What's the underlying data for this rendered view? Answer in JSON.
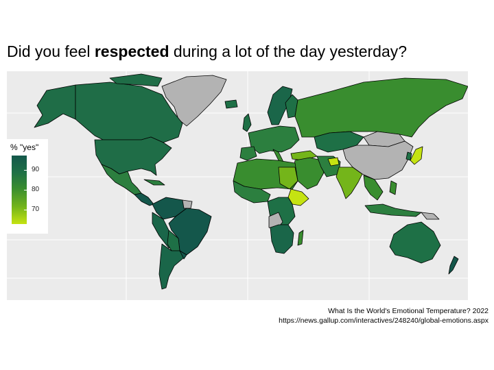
{
  "title": {
    "prefix": "Did you feel ",
    "emphasis": "respected",
    "suffix": " during a lot of the day yesterday?"
  },
  "legend": {
    "title": "% \"yes\"",
    "ticks": [
      {
        "label": "90",
        "value": 90
      },
      {
        "label": "80",
        "value": 80
      },
      {
        "label": "70",
        "value": 70
      }
    ],
    "scale_min": 63,
    "scale_max": 97,
    "colors": [
      "#14574b",
      "#1e7046",
      "#398d2f",
      "#74b51a",
      "#c5e312"
    ],
    "missing_color": "#b3b3b3"
  },
  "caption": {
    "line1": "What Is the World's Emotional Temperature? 2022",
    "line2": "https://news.gallup.com/interactives/248240/global-emotions.aspx"
  },
  "map": {
    "background": "#ebebeb",
    "gridline_color": "#ffffff"
  }
}
